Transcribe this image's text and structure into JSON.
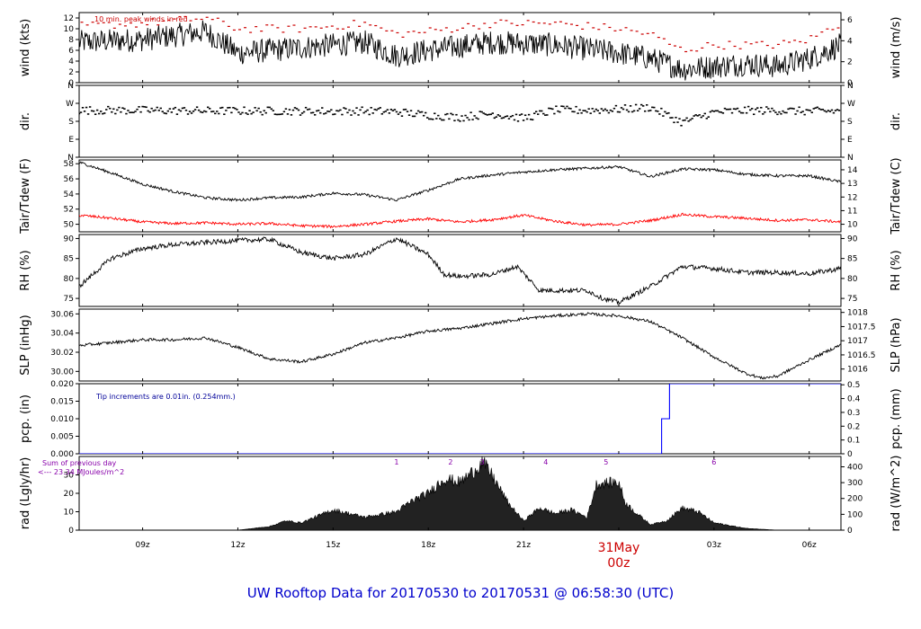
{
  "title": "UW Rooftop Data for 20170530  to  20170531 @ 06:58:30  (UTC)",
  "colors": {
    "main": "#000000",
    "peak": "#cc0000",
    "dew": "#ff0000",
    "precip": "#0000ff",
    "title": "#0000cc",
    "marks": "#8800aa",
    "note_blue": "#000099"
  },
  "x_axis": {
    "tick_labels": [
      "09z",
      "12z",
      "15z",
      "18z",
      "21z",
      "03z",
      "06z"
    ],
    "tick_hours": [
      9,
      12,
      15,
      18,
      21,
      27,
      30
    ],
    "day_label": "31May",
    "day_hour_label": "00z",
    "day_hour": 24,
    "range_hours": [
      7,
      31
    ]
  },
  "panels": {
    "wind": {
      "ylabel_left": "wind (kts)",
      "ylabel_right": "wind (m/s)",
      "left_ticks": [
        "0",
        "2",
        "4",
        "6",
        "8",
        "10",
        "12"
      ],
      "right_ticks": [
        "0",
        "2",
        "4",
        "6"
      ],
      "note": "10 min. peak winds in red"
    },
    "dir": {
      "ylabel_left": "dir.",
      "ylabel_right": "dir.",
      "left_ticks": [
        "N",
        "E",
        "S",
        "W",
        "N"
      ],
      "right_ticks": [
        "N",
        "E",
        "S",
        "W",
        "N"
      ]
    },
    "temp": {
      "ylabel_left": "Tair/Tdew (F)",
      "ylabel_right": "Tair/Tdew (C)",
      "left_ticks": [
        "50",
        "52",
        "54",
        "56",
        "58"
      ],
      "right_ticks": [
        "10",
        "11",
        "12",
        "13",
        "14"
      ]
    },
    "rh": {
      "ylabel_left": "RH (%)",
      "ylabel_right": "RH (%)",
      "left_ticks": [
        "75",
        "80",
        "85",
        "90"
      ],
      "right_ticks": [
        "75",
        "80",
        "85",
        "90"
      ]
    },
    "slp": {
      "ylabel_left": "SLP (inHg)",
      "ylabel_right": "SLP (hPa)",
      "left_ticks": [
        "30.00",
        "30.02",
        "30.04",
        "30.06"
      ],
      "right_ticks": [
        "1016",
        "1016.5",
        "1017",
        "1017.5",
        "1018"
      ]
    },
    "pcp": {
      "ylabel_left": "pcp. (in)",
      "ylabel_right": "pcp. (mm)",
      "left_ticks": [
        "0.000",
        "0.005",
        "0.010",
        "0.015",
        "0.020"
      ],
      "right_ticks": [
        "0",
        "0.1",
        "0.2",
        "0.3",
        "0.4",
        "0.5"
      ],
      "note": "Tip increments are 0.01in. (0.254mm.)"
    },
    "rad": {
      "ylabel_left": "rad (Lgly/hr)",
      "ylabel_right": "rad (W/m^2)",
      "left_ticks": [
        "0",
        "10",
        "20",
        "30"
      ],
      "right_ticks": [
        "0",
        "100",
        "200",
        "300",
        "400"
      ],
      "note1": "Sum of previous day",
      "note2": "<--- 23.34 MJoules/m^2",
      "marks": [
        "1",
        "2",
        "3",
        "4",
        "5",
        "6"
      ]
    }
  },
  "chart_data": [
    {
      "type": "line",
      "panel": "wind",
      "x_unit": "hour UTC from 20170530 00z",
      "x": [
        7,
        9,
        11,
        12,
        14,
        16,
        17,
        18,
        20,
        22,
        24,
        25,
        26,
        27,
        28,
        29,
        30,
        31
      ],
      "series": [
        {
          "values": [
            7.5,
            8,
            9.5,
            5.5,
            6.5,
            7.5,
            5,
            6,
            7.5,
            7,
            5.5,
            4.5,
            2.5,
            3,
            3.5,
            3,
            4.5,
            7
          ]
        },
        {
          "values": [
            10.5,
            11,
            12,
            10,
            10,
            11,
            9,
            9.5,
            11,
            11,
            10,
            9,
            6,
            7,
            7,
            7,
            8,
            11
          ]
        }
      ],
      "ylim": [
        0,
        13
      ]
    },
    {
      "type": "scatter",
      "panel": "dir",
      "y_unit": "degrees (0=N, 90=E, 180=S, 270=W)",
      "x": [
        7,
        9,
        11,
        13,
        15,
        16,
        17,
        18,
        19,
        20,
        21,
        22,
        23,
        24,
        25,
        26,
        27,
        28,
        29,
        30,
        31
      ],
      "values": [
        235,
        235,
        232,
        232,
        230,
        232,
        228,
        210,
        200,
        218,
        195,
        236,
        235,
        240,
        250,
        175,
        225,
        234,
        234,
        230,
        232
      ],
      "ylim": [
        0,
        360
      ]
    },
    {
      "type": "line",
      "panel": "temp",
      "x": [
        7,
        8,
        9,
        10,
        11,
        12,
        13,
        14,
        15,
        16,
        17,
        18,
        19,
        20,
        21,
        22,
        23,
        24,
        25,
        26,
        27,
        28,
        29,
        30,
        31
      ],
      "series": [
        {
          "values": [
            58.2,
            56.8,
            55.3,
            54.3,
            53.5,
            53.2,
            53.5,
            53.6,
            54.1,
            53.9,
            53.2,
            54.5,
            56,
            56.5,
            56.9,
            57.2,
            57.4,
            57.6,
            56.3,
            57.3,
            57.2,
            56.6,
            56.4,
            56.4,
            55.6
          ]
        },
        {
          "values": [
            51.2,
            50.8,
            50.3,
            50.1,
            50.2,
            50,
            50.1,
            49.8,
            49.7,
            50,
            50.4,
            50.7,
            50.3,
            50.6,
            51.2,
            50.4,
            49.9,
            50,
            50.5,
            51.3,
            51,
            50.8,
            50.5,
            50.6,
            50.3
          ]
        }
      ],
      "ylim": [
        49,
        58.5
      ]
    },
    {
      "type": "line",
      "panel": "rh",
      "x": [
        7,
        8,
        9,
        10,
        11,
        12,
        13,
        14,
        15,
        16,
        17,
        18,
        18.5,
        19,
        20,
        20.8,
        21.5,
        22,
        23,
        23.5,
        24,
        25,
        26,
        27,
        28,
        29,
        30,
        31
      ],
      "series": [
        {
          "values": [
            78,
            85,
            87.5,
            88.5,
            89,
            89.5,
            89.8,
            86.5,
            85,
            86,
            90,
            86,
            81,
            80.5,
            81,
            83,
            77,
            77,
            77,
            75,
            74,
            78,
            83,
            82.5,
            81.5,
            81.5,
            81.2,
            82.5
          ]
        }
      ],
      "ylim": [
        73,
        91
      ]
    },
    {
      "type": "line",
      "panel": "slp",
      "x": [
        7,
        8,
        9,
        10,
        11,
        12,
        13,
        14,
        15,
        16,
        17,
        18,
        19,
        20,
        21,
        22,
        23,
        24,
        25,
        26,
        27,
        28,
        28.5,
        29,
        30,
        31
      ],
      "series": [
        {
          "values": [
            30.027,
            30.03,
            30.033,
            30.033,
            30.035,
            30.025,
            30.013,
            30.01,
            30.018,
            30.03,
            30.035,
            30.042,
            30.045,
            30.05,
            30.055,
            30.058,
            30.06,
            30.058,
            30.052,
            30.035,
            30.015,
            29.998,
            29.993,
            29.995,
            30.012,
            30.028
          ]
        }
      ],
      "ylim": [
        29.99,
        30.065
      ]
    },
    {
      "type": "line",
      "panel": "pcp",
      "x": [
        7,
        25.3,
        25.35,
        25.5,
        25.6,
        31
      ],
      "series": [
        {
          "values": [
            0,
            0,
            0.01,
            0.01,
            0.02,
            0.02
          ]
        }
      ],
      "ylim": [
        0,
        0.02
      ]
    },
    {
      "type": "area",
      "panel": "rad",
      "x": [
        7,
        12,
        13,
        13.5,
        14,
        15,
        16,
        17,
        17.5,
        18,
        18.5,
        19,
        19.5,
        19.7,
        20,
        20.5,
        21,
        21.5,
        22,
        22.5,
        23,
        23.3,
        24,
        24.2,
        24.5,
        25,
        25.5,
        26,
        26.5,
        27,
        28,
        29,
        31
      ],
      "series": [
        {
          "values": [
            0,
            0,
            2,
            5,
            4,
            11,
            7,
            10,
            16,
            20,
            28,
            26,
            33,
            37,
            30,
            15,
            5,
            12,
            9,
            11,
            7,
            25,
            26,
            15,
            10,
            3,
            5,
            12,
            10,
            4,
            1,
            0,
            0
          ]
        }
      ],
      "ylim": [
        0,
        40
      ]
    }
  ]
}
